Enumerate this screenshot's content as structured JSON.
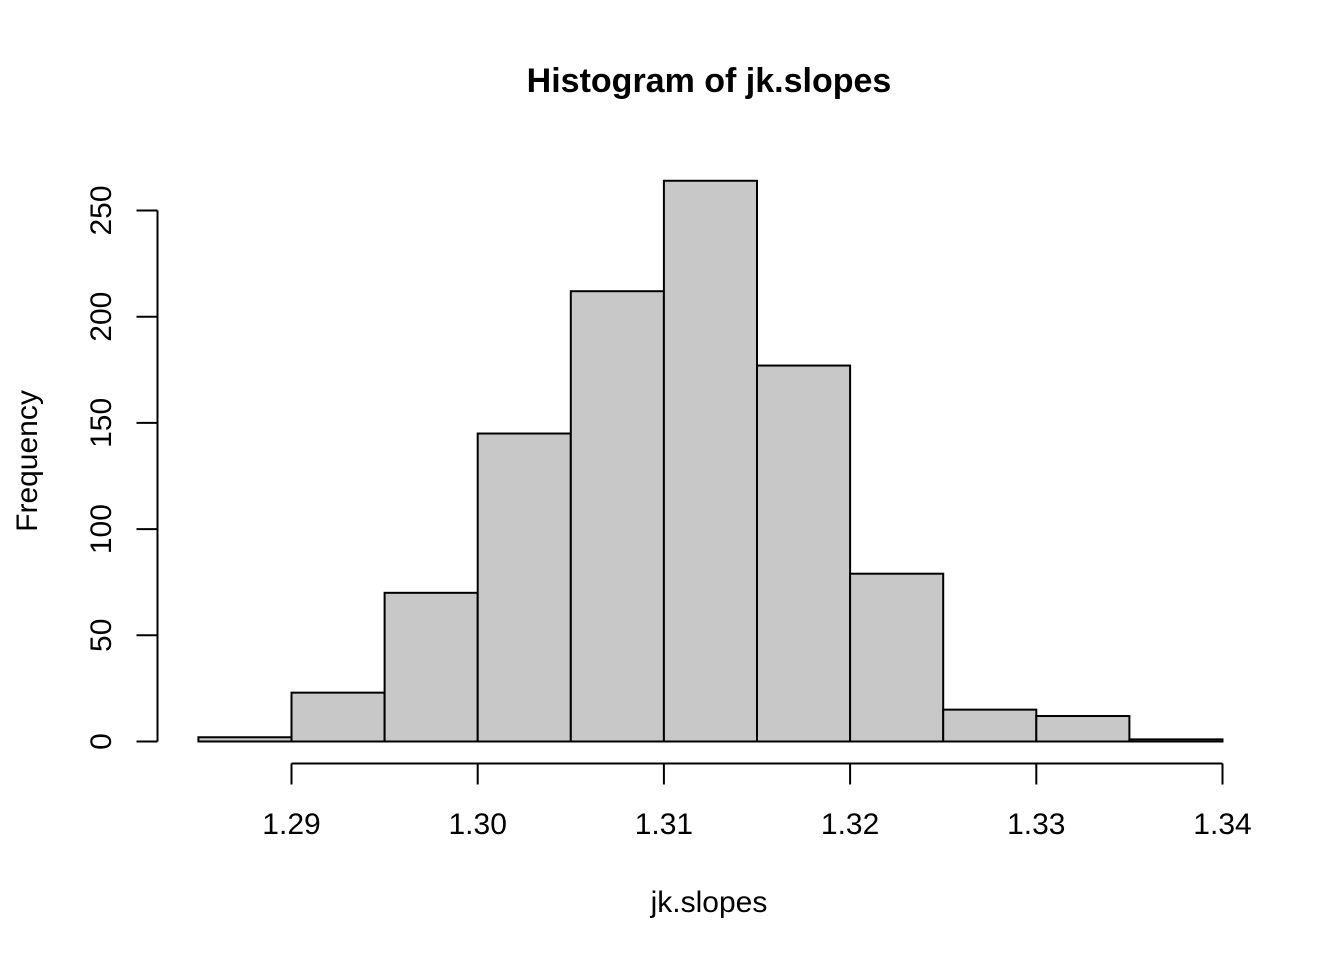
{
  "chart_data": {
    "type": "bar",
    "subtype": "histogram",
    "title": "Histogram of jk.slopes",
    "xlabel": "jk.slopes",
    "ylabel": "Frequency",
    "bins": [
      {
        "start": 1.285,
        "end": 1.29,
        "count": 2
      },
      {
        "start": 1.29,
        "end": 1.295,
        "count": 23
      },
      {
        "start": 1.295,
        "end": 1.3,
        "count": 70
      },
      {
        "start": 1.3,
        "end": 1.305,
        "count": 145
      },
      {
        "start": 1.305,
        "end": 1.31,
        "count": 212
      },
      {
        "start": 1.31,
        "end": 1.315,
        "count": 264
      },
      {
        "start": 1.315,
        "end": 1.32,
        "count": 177
      },
      {
        "start": 1.32,
        "end": 1.325,
        "count": 79
      },
      {
        "start": 1.325,
        "end": 1.33,
        "count": 15
      },
      {
        "start": 1.33,
        "end": 1.335,
        "count": 12
      },
      {
        "start": 1.335,
        "end": 1.34,
        "count": 1
      }
    ],
    "xlim": [
      1.285,
      1.34
    ],
    "ylim": [
      0,
      264
    ],
    "x_ticks": [
      1.29,
      1.3,
      1.31,
      1.32,
      1.33,
      1.34
    ],
    "x_tick_labels": [
      "1.29",
      "1.30",
      "1.31",
      "1.32",
      "1.33",
      "1.34"
    ],
    "y_ticks": [
      0,
      50,
      100,
      150,
      200,
      250
    ],
    "y_tick_labels": [
      "0",
      "50",
      "100",
      "150",
      "200",
      "250"
    ],
    "bar_color": "#c8c8c8",
    "grid": false,
    "legend": "none"
  }
}
